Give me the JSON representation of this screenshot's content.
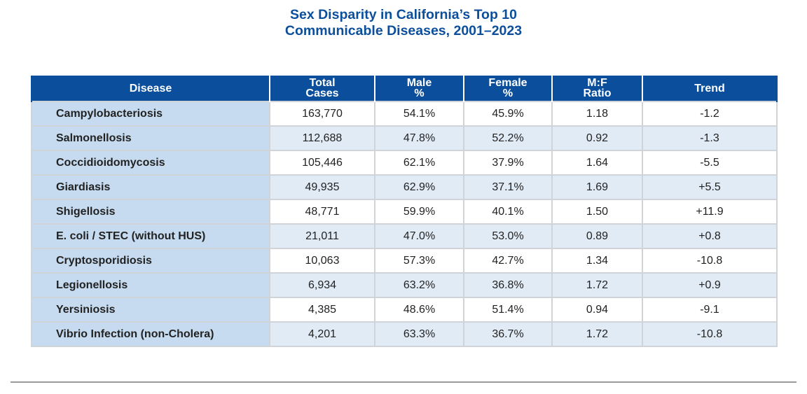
{
  "chart_data": {
    "type": "table",
    "title_line1": "Sex Disparity in California’s Top 10",
    "title_line2": "Communicable Diseases, 2001–2023",
    "columns": [
      {
        "line1": "Disease",
        "line2": ""
      },
      {
        "line1": "Total",
        "line2": "Cases"
      },
      {
        "line1": "Male",
        "line2": "%"
      },
      {
        "line1": "Female",
        "line2": "%"
      },
      {
        "line1": "M:F",
        "line2": "Ratio"
      },
      {
        "line1": "Trend",
        "line2": ""
      }
    ],
    "rows": [
      [
        "Campylobacteriosis",
        "163,770",
        "54.1%",
        "45.9%",
        "1.18",
        "-1.2"
      ],
      [
        "Salmonellosis",
        "112,688",
        "47.8%",
        "52.2%",
        "0.92",
        "-1.3"
      ],
      [
        "Coccidioidomycosis",
        "105,446",
        "62.1%",
        "37.9%",
        "1.64",
        "-5.5"
      ],
      [
        "Giardiasis",
        "49,935",
        "62.9%",
        "37.1%",
        "1.69",
        "+5.5"
      ],
      [
        "Shigellosis",
        "48,771",
        "59.9%",
        "40.1%",
        "1.50",
        "+11.9"
      ],
      [
        "E. coli / STEC (without HUS)",
        "21,011",
        "47.0%",
        "53.0%",
        "0.89",
        "+0.8"
      ],
      [
        "Cryptosporidiosis",
        "10,063",
        "57.3%",
        "42.7%",
        "1.34",
        "-10.8"
      ],
      [
        "Legionellosis",
        "6,934",
        "63.2%",
        "36.8%",
        "1.72",
        "+0.9"
      ],
      [
        "Yersiniosis",
        "4,385",
        "48.6%",
        "51.4%",
        "0.94",
        "-9.1"
      ],
      [
        "Vibrio Infection (non-Cholera)",
        "4,201",
        "63.3%",
        "36.7%",
        "1.72",
        "-10.8"
      ]
    ],
    "colors": {
      "header_bg": "#0b4f9c",
      "title": "#0b4f9c",
      "name_col_bg": "#c6dbef",
      "stripe_bg": "#e1ebf6"
    }
  }
}
